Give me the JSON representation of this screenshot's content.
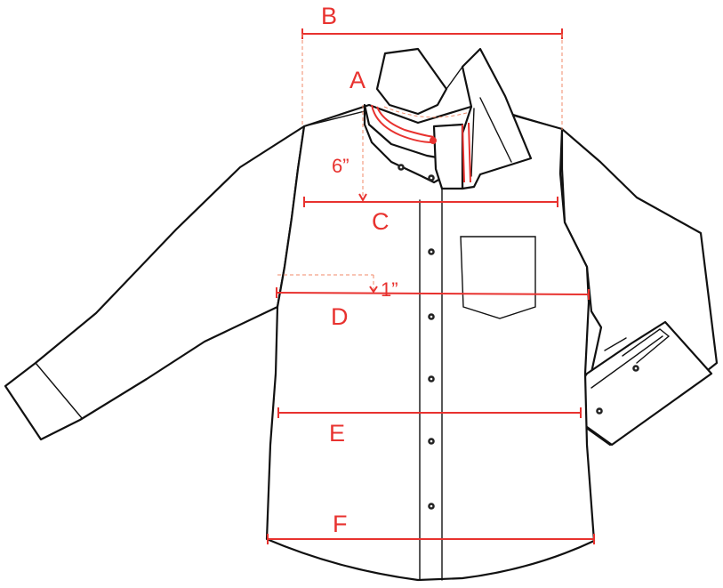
{
  "colors": {
    "measure": "#e8322f",
    "guide": "#f08a6a",
    "outline": "#111111"
  },
  "labels": {
    "a": "A",
    "b": "B",
    "c": "C",
    "d": "D",
    "e": "E",
    "f": "F",
    "six_inch": "6”",
    "one_inch": "1”"
  }
}
